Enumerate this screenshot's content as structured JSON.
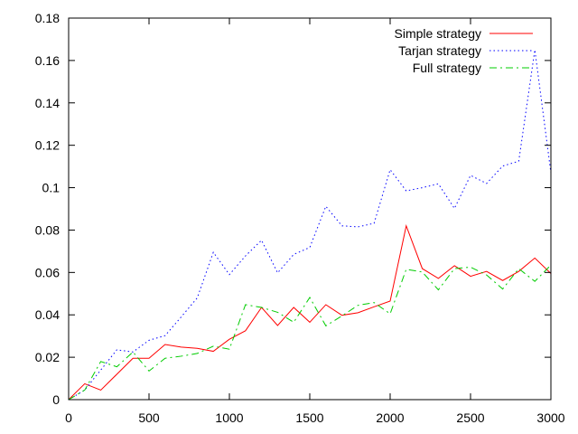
{
  "chart_data": {
    "type": "line",
    "title": "",
    "xlabel": "",
    "ylabel": "",
    "xlim": [
      0,
      3000
    ],
    "ylim": [
      0,
      0.18
    ],
    "xticks": [
      "0",
      "500",
      "1000",
      "1500",
      "2000",
      "2500",
      "3000"
    ],
    "yticks": [
      "0",
      "0.02",
      "0.04",
      "0.06",
      "0.08",
      "0.1",
      "0.12",
      "0.14",
      "0.16",
      "0.18"
    ],
    "grid": false,
    "legend_position": "top-right",
    "x": [
      0,
      100,
      200,
      300,
      400,
      500,
      600,
      700,
      800,
      900,
      1000,
      1100,
      1200,
      1300,
      1400,
      1500,
      1600,
      1700,
      1800,
      1900,
      2000,
      2100,
      2200,
      2300,
      2400,
      2500,
      2600,
      2700,
      2800,
      2900,
      3000
    ],
    "series": [
      {
        "name": "Simple strategy",
        "color": "#ff0000",
        "dash": "solid",
        "values": [
          0,
          0.0075,
          0.0045,
          0.012,
          0.0195,
          0.0195,
          0.026,
          0.0248,
          0.0242,
          0.0228,
          0.0285,
          0.0325,
          0.0435,
          0.035,
          0.0435,
          0.0365,
          0.0448,
          0.0398,
          0.041,
          0.0438,
          0.0465,
          0.082,
          0.0618,
          0.0572,
          0.0632,
          0.0582,
          0.0605,
          0.0562,
          0.0605,
          0.0668,
          0.0595
        ]
      },
      {
        "name": "Tarjan strategy",
        "color": "#0000ff",
        "dash": "dotted",
        "values": [
          0,
          0.0045,
          0.014,
          0.0235,
          0.0225,
          0.028,
          0.0302,
          0.039,
          0.048,
          0.0695,
          0.059,
          0.0678,
          0.0752,
          0.0598,
          0.0685,
          0.0718,
          0.0912,
          0.082,
          0.0815,
          0.0832,
          0.1085,
          0.0985,
          0.1,
          0.1018,
          0.0902,
          0.1058,
          0.102,
          0.1102,
          0.1125,
          0.165,
          0.107
        ]
      },
      {
        "name": "Full strategy",
        "color": "#00cc00",
        "dash": "dashdot",
        "values": [
          0,
          0.0045,
          0.018,
          0.0155,
          0.0225,
          0.0135,
          0.0195,
          0.0205,
          0.0218,
          0.0252,
          0.0238,
          0.0448,
          0.0435,
          0.0412,
          0.0365,
          0.0482,
          0.0348,
          0.0395,
          0.0445,
          0.0458,
          0.0405,
          0.0615,
          0.0602,
          0.0518,
          0.0618,
          0.0625,
          0.0588,
          0.0522,
          0.0618,
          0.0558,
          0.0635
        ]
      }
    ]
  }
}
